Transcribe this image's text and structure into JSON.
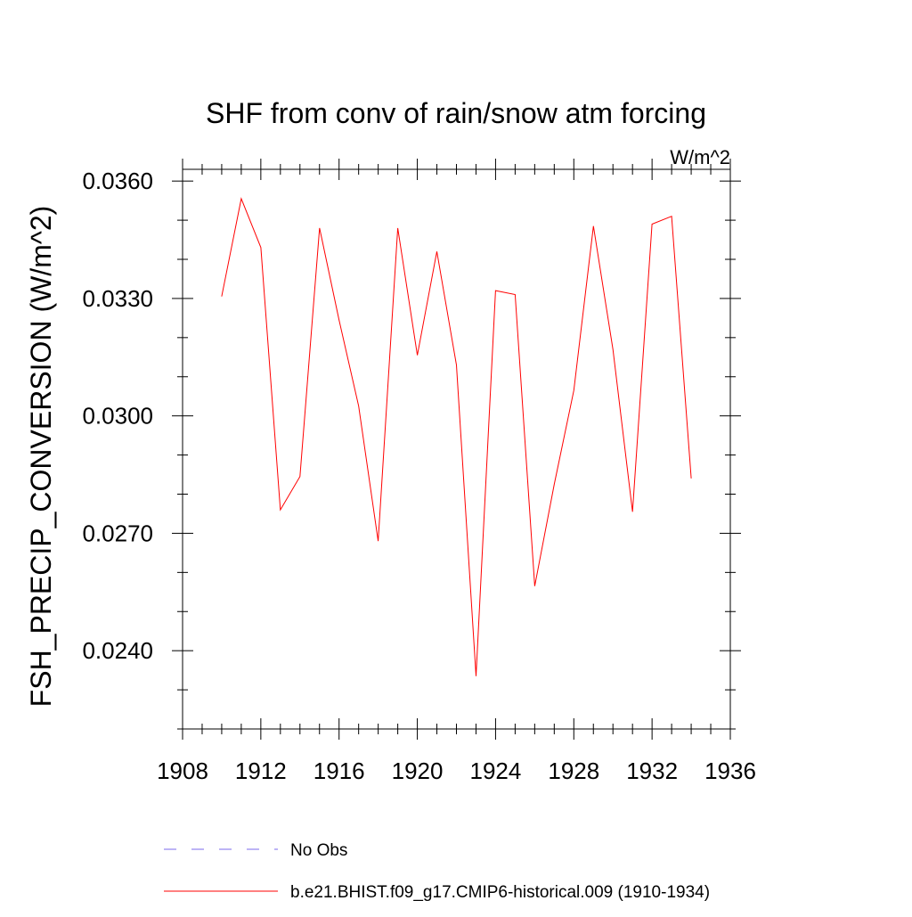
{
  "chart_data": {
    "type": "line",
    "title": "SHF from conv of rain/snow atm forcing",
    "units_label": "W/m^2",
    "ylabel": "FSH_PRECIP_CONVERSION  (W/m^2)",
    "xlabel": "",
    "xlim": [
      1908,
      1936
    ],
    "ylim": [
      0.022,
      0.0363
    ],
    "x_ticks": [
      1908,
      1912,
      1916,
      1920,
      1924,
      1928,
      1932,
      1936
    ],
    "x_tick_labels": [
      "1908",
      "1912",
      "1916",
      "1920",
      "1924",
      "1928",
      "1932",
      "1936"
    ],
    "x_minor_step": 1,
    "y_ticks": [
      0.024,
      0.027,
      0.03,
      0.033,
      0.036
    ],
    "y_tick_labels": [
      "0.0240",
      "0.0270",
      "0.0300",
      "0.0330",
      "0.0360"
    ],
    "y_minor_step": 0.001,
    "grid": false,
    "legend_position": "bottom",
    "series": [
      {
        "name": "No Obs",
        "color": "#7b68ee",
        "style": "dashed",
        "x": [],
        "values": []
      },
      {
        "name": "b.e21.BHIST.f09_g17.CMIP6-historical.009 (1910-1934)",
        "color": "#ff0000",
        "style": "solid",
        "x": [
          1910,
          1911,
          1912,
          1913,
          1914,
          1915,
          1916,
          1917,
          1918,
          1919,
          1920,
          1921,
          1922,
          1923,
          1924,
          1925,
          1926,
          1927,
          1928,
          1929,
          1930,
          1931,
          1932,
          1933,
          1934
        ],
        "values": [
          0.03305,
          0.03555,
          0.0343,
          0.0276,
          0.02845,
          0.0348,
          0.03245,
          0.03025,
          0.0268,
          0.0348,
          0.03155,
          0.0342,
          0.0313,
          0.02335,
          0.0332,
          0.0331,
          0.02565,
          0.02825,
          0.03065,
          0.03485,
          0.0317,
          0.02755,
          0.0349,
          0.0351,
          0.0284
        ]
      }
    ]
  }
}
